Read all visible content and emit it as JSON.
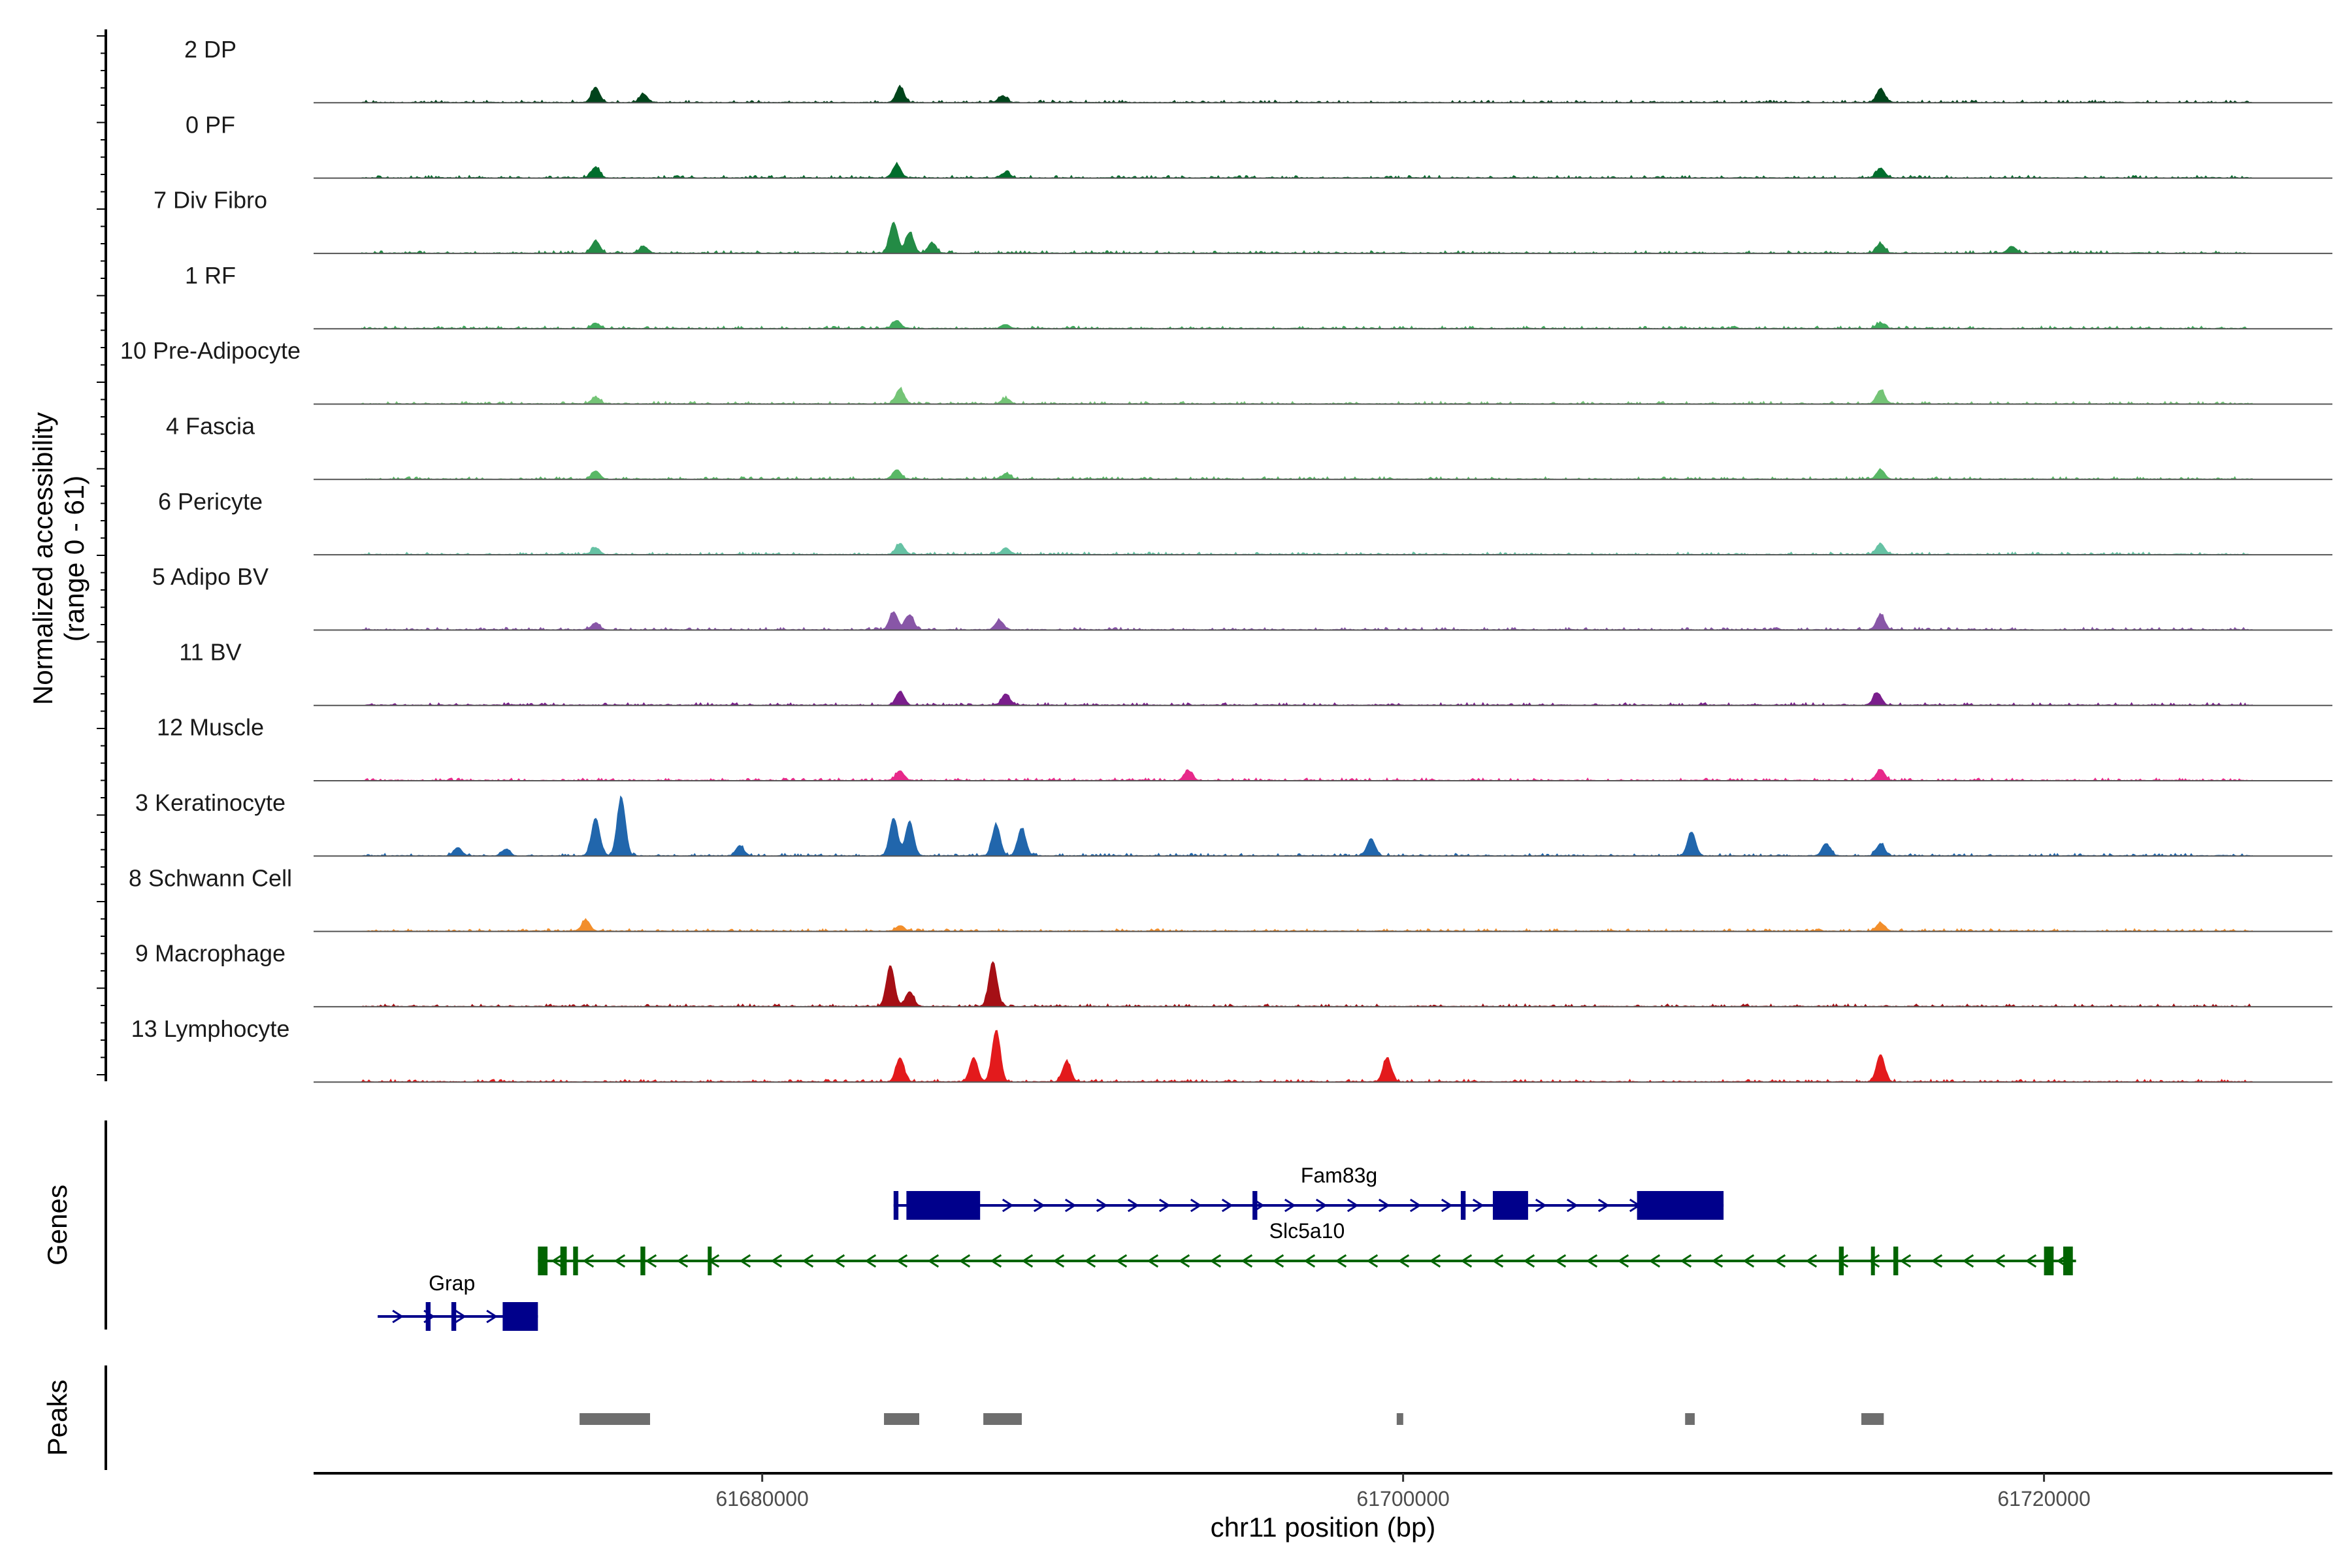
{
  "chart_data": {
    "type": "area",
    "title": "",
    "ylabel": "Normalized accessibility",
    "ylabel_range": "(range 0 - 61)",
    "y_range": [
      0,
      61
    ],
    "xlabel": "chr11 position (bp)",
    "x_range": [
      61666000,
      61729000
    ],
    "x_ticks": [
      61680000,
      61700000,
      61720000
    ],
    "x_tick_labels": [
      "61680000",
      "61700000",
      "61720000"
    ],
    "tracks": [
      {
        "name": "2 DP",
        "color": "#00441b",
        "peaks": [
          {
            "pos": 61674800,
            "h": 0.22
          },
          {
            "pos": 61676300,
            "h": 0.12
          },
          {
            "pos": 61684300,
            "h": 0.22
          },
          {
            "pos": 61687500,
            "h": 0.1
          },
          {
            "pos": 61714900,
            "h": 0.2
          }
        ]
      },
      {
        "name": "0 PF",
        "color": "#006d2c",
        "peaks": [
          {
            "pos": 61674800,
            "h": 0.16
          },
          {
            "pos": 61684200,
            "h": 0.2
          },
          {
            "pos": 61687600,
            "h": 0.08
          },
          {
            "pos": 61714900,
            "h": 0.14
          }
        ]
      },
      {
        "name": "7 Div Fibro",
        "color": "#238b45",
        "peaks": [
          {
            "pos": 61674800,
            "h": 0.18
          },
          {
            "pos": 61676300,
            "h": 0.1
          },
          {
            "pos": 61684100,
            "h": 0.45
          },
          {
            "pos": 61684600,
            "h": 0.3
          },
          {
            "pos": 61685300,
            "h": 0.15
          },
          {
            "pos": 61714900,
            "h": 0.14
          },
          {
            "pos": 61719000,
            "h": 0.1
          }
        ]
      },
      {
        "name": "1 RF",
        "color": "#41ab5d",
        "peaks": [
          {
            "pos": 61674800,
            "h": 0.08
          },
          {
            "pos": 61684200,
            "h": 0.12
          },
          {
            "pos": 61687600,
            "h": 0.06
          },
          {
            "pos": 61714900,
            "h": 0.08
          }
        ]
      },
      {
        "name": "10 Pre-Adipocyte",
        "color": "#74c476",
        "peaks": [
          {
            "pos": 61674800,
            "h": 0.1
          },
          {
            "pos": 61684300,
            "h": 0.22
          },
          {
            "pos": 61687600,
            "h": 0.08
          },
          {
            "pos": 61714900,
            "h": 0.2
          }
        ]
      },
      {
        "name": "4 Fascia",
        "color": "#59b866",
        "peaks": [
          {
            "pos": 61674800,
            "h": 0.12
          },
          {
            "pos": 61684200,
            "h": 0.14
          },
          {
            "pos": 61687600,
            "h": 0.08
          },
          {
            "pos": 61714900,
            "h": 0.14
          }
        ]
      },
      {
        "name": "6 Pericyte",
        "color": "#66c2a4",
        "peaks": [
          {
            "pos": 61674800,
            "h": 0.1
          },
          {
            "pos": 61684300,
            "h": 0.16
          },
          {
            "pos": 61687600,
            "h": 0.1
          },
          {
            "pos": 61714900,
            "h": 0.16
          }
        ]
      },
      {
        "name": "5 Adipo BV",
        "color": "#8856a7",
        "peaks": [
          {
            "pos": 61674800,
            "h": 0.1
          },
          {
            "pos": 61684100,
            "h": 0.26
          },
          {
            "pos": 61684600,
            "h": 0.22
          },
          {
            "pos": 61687400,
            "h": 0.14
          },
          {
            "pos": 61714900,
            "h": 0.22
          }
        ]
      },
      {
        "name": "11 BV",
        "color": "#7a1e8c",
        "peaks": [
          {
            "pos": 61684300,
            "h": 0.2
          },
          {
            "pos": 61687600,
            "h": 0.16
          },
          {
            "pos": 61714800,
            "h": 0.18
          }
        ]
      },
      {
        "name": "12 Muscle",
        "color": "#e7298a",
        "peaks": [
          {
            "pos": 61684300,
            "h": 0.14
          },
          {
            "pos": 61693300,
            "h": 0.14
          },
          {
            "pos": 61714900,
            "h": 0.16
          }
        ]
      },
      {
        "name": "3 Keratinocyte",
        "color": "#2166ac",
        "peaks": [
          {
            "pos": 61670500,
            "h": 0.12
          },
          {
            "pos": 61672000,
            "h": 0.1
          },
          {
            "pos": 61674800,
            "h": 0.55
          },
          {
            "pos": 61675600,
            "h": 0.85
          },
          {
            "pos": 61679300,
            "h": 0.15
          },
          {
            "pos": 61684100,
            "h": 0.55
          },
          {
            "pos": 61684600,
            "h": 0.5
          },
          {
            "pos": 61687300,
            "h": 0.45
          },
          {
            "pos": 61688100,
            "h": 0.4
          },
          {
            "pos": 61699000,
            "h": 0.25
          },
          {
            "pos": 61709000,
            "h": 0.35
          },
          {
            "pos": 61713200,
            "h": 0.18
          },
          {
            "pos": 61714900,
            "h": 0.18
          }
        ]
      },
      {
        "name": "8 Schwann Cell",
        "color": "#f28e2b",
        "peaks": [
          {
            "pos": 61674500,
            "h": 0.16
          },
          {
            "pos": 61684300,
            "h": 0.08
          },
          {
            "pos": 61714900,
            "h": 0.12
          }
        ]
      },
      {
        "name": "9 Macrophage",
        "color": "#a50f15",
        "peaks": [
          {
            "pos": 61684000,
            "h": 0.6
          },
          {
            "pos": 61684600,
            "h": 0.22
          },
          {
            "pos": 61687200,
            "h": 0.65
          }
        ]
      },
      {
        "name": "13 Lymphocyte",
        "color": "#e31a1c",
        "peaks": [
          {
            "pos": 61684300,
            "h": 0.35
          },
          {
            "pos": 61687300,
            "h": 0.75
          },
          {
            "pos": 61686600,
            "h": 0.35
          },
          {
            "pos": 61689500,
            "h": 0.3
          },
          {
            "pos": 61699500,
            "h": 0.35
          },
          {
            "pos": 61714900,
            "h": 0.4
          }
        ]
      }
    ],
    "genes": [
      {
        "name": "Fam83g",
        "strand": "+",
        "start": 61684100,
        "end": 61710000,
        "color": "#00008b",
        "exons": [
          [
            61684100,
            61684250
          ],
          [
            61684500,
            61686800
          ],
          [
            61695300,
            61695450
          ],
          [
            61701800,
            61701950
          ],
          [
            61702800,
            61703900
          ],
          [
            61707300,
            61710000
          ]
        ]
      },
      {
        "name": "Slc5a10",
        "strand": "-",
        "start": 61673000,
        "end": 61721000,
        "color": "#006400",
        "exons": [
          [
            61673000,
            61673300
          ],
          [
            61673700,
            61673900
          ],
          [
            61674100,
            61674250
          ],
          [
            61676200,
            61676350
          ],
          [
            61678300,
            61678400
          ],
          [
            61713600,
            61713750
          ],
          [
            61714600,
            61714700
          ],
          [
            61715300,
            61715450
          ],
          [
            61720000,
            61720300
          ],
          [
            61720600,
            61720900
          ]
        ]
      },
      {
        "name": "Grap",
        "strand": "+",
        "start": 61668000,
        "end": 61673000,
        "color": "#00008b",
        "exons": [
          [
            61669500,
            61669650
          ],
          [
            61670300,
            61670450
          ],
          [
            61671900,
            61673000
          ]
        ]
      }
    ],
    "peak_regions": [
      [
        61674300,
        61676500
      ],
      [
        61683800,
        61684900
      ],
      [
        61686900,
        61688100
      ],
      [
        61699800,
        61700000
      ],
      [
        61708800,
        61709100
      ],
      [
        61714300,
        61715000
      ]
    ],
    "gene_panel_label": "Genes",
    "peaks_panel_label": "Peaks"
  }
}
